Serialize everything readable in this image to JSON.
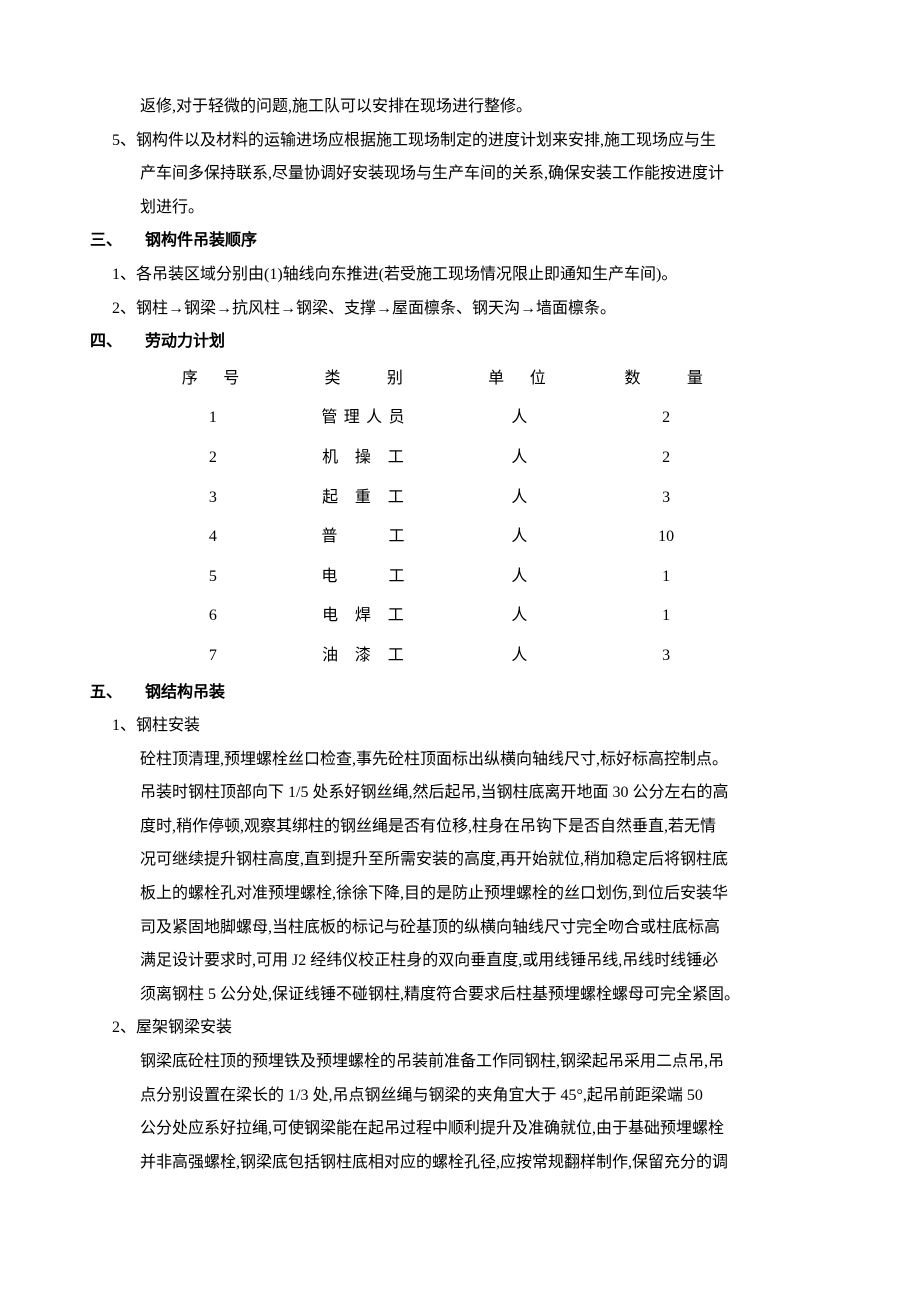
{
  "para_top_1": "返修,对于轻微的问题,施工队可以安排在现场进行整修。",
  "item_5_lead": "5、钢构件以及材料的运输进场应根据施工现场制定的进度计划来安排,施工现场应与生",
  "item_5_cont1": "产车间多保持联系,尽量协调好安装现场与生产车间的关系,确保安装工作能按进度计",
  "item_5_cont2": "划进行。",
  "section3": {
    "num": "三、",
    "title": "钢构件吊装顺序",
    "item1": "1、各吊装区域分别由(1)轴线向东推进(若受施工现场情况限止即通知生产车间)。",
    "item2": "2、钢柱→钢梁→抗风柱→钢梁、支撑→屋面檩条、钢天沟→墙面檩条。"
  },
  "section4": {
    "num": "四、",
    "title": "劳动力计划",
    "table": {
      "headers": {
        "seq": "序　号",
        "category": "类　　别",
        "unit": "单　位",
        "qty": "数　　量"
      },
      "rows": [
        {
          "seq": "1",
          "category": "管理人员",
          "unit": "人",
          "qty": "2"
        },
        {
          "seq": "2",
          "category": "机 操 工",
          "unit": "人",
          "qty": "2"
        },
        {
          "seq": "3",
          "category": "起 重 工",
          "unit": "人",
          "qty": "3"
        },
        {
          "seq": "4",
          "category": "普　　工",
          "unit": "人",
          "qty": "10"
        },
        {
          "seq": "5",
          "category": "电　　工",
          "unit": "人",
          "qty": "1"
        },
        {
          "seq": "6",
          "category": "电 焊 工",
          "unit": "人",
          "qty": "1"
        },
        {
          "seq": "7",
          "category": "油 漆 工",
          "unit": "人",
          "qty": "3"
        }
      ]
    }
  },
  "section5": {
    "num": "五、",
    "title": "钢结构吊装",
    "sub1": {
      "heading": "1、钢柱安装",
      "p1": "砼柱顶清理,预埋螺栓丝口检查,事先砼柱顶面标出纵横向轴线尺寸,标好标高控制点。",
      "p2": "吊装时钢柱顶部向下 1/5 处系好钢丝绳,然后起吊,当钢柱底离开地面 30 公分左右的高",
      "p3": "度时,稍作停顿,观察其绑柱的钢丝绳是否有位移,柱身在吊钩下是否自然垂直,若无情",
      "p4": "况可继续提升钢柱高度,直到提升至所需安装的高度,再开始就位,稍加稳定后将钢柱底",
      "p5": "板上的螺栓孔对准预埋螺栓,徐徐下降,目的是防止预埋螺栓的丝口划伤,到位后安装华",
      "p6": "司及紧固地脚螺母,当柱底板的标记与砼基顶的纵横向轴线尺寸完全吻合或柱底标高",
      "p7": "满足设计要求时,可用 J2 经纬仪校正柱身的双向垂直度,或用线锤吊线,吊线时线锤必",
      "p8": "须离钢柱 5 公分处,保证线锤不碰钢柱,精度符合要求后柱基预埋螺栓螺母可完全紧固。"
    },
    "sub2": {
      "heading": "2、屋架钢梁安装",
      "p1": "钢梁底砼柱顶的预埋铁及预埋螺栓的吊装前准备工作同钢柱,钢梁起吊采用二点吊,吊",
      "p2": "点分别设置在梁长的 1/3 处,吊点钢丝绳与钢梁的夹角宜大于 45°,起吊前距梁端 50",
      "p3": "公分处应系好拉绳,可使钢梁能在起吊过程中顺利提升及准确就位,由于基础预埋螺栓",
      "p4": "并非高强螺栓,钢梁底包括钢柱底相对应的螺栓孔径,应按常规翻样制作,保留充分的调"
    }
  }
}
